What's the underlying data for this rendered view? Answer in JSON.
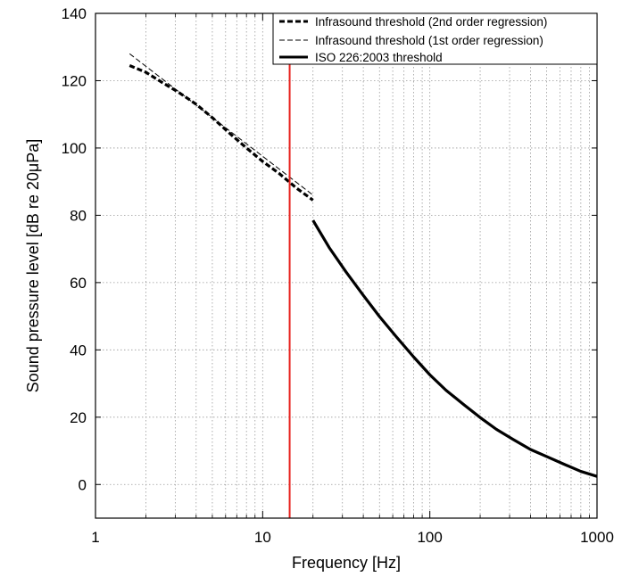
{
  "chart_data": {
    "type": "line",
    "xscale": "log",
    "xlim": [
      1,
      1000
    ],
    "ylim": [
      -10,
      140
    ],
    "xticks": [
      1,
      10,
      100,
      1000
    ],
    "xtick_labels": [
      "1",
      "10",
      "100",
      "1000"
    ],
    "yticks": [
      0,
      20,
      40,
      60,
      80,
      100,
      120,
      140
    ],
    "ytick_labels": [
      "0",
      "20",
      "40",
      "60",
      "80",
      "100",
      "120",
      "140"
    ],
    "xlabel": "Frequency [Hz]",
    "ylabel_parts": [
      "Sound pressure level [dB re 20",
      "μ",
      "Pa]"
    ],
    "grid": true,
    "legend_position": "top-right",
    "colors": {
      "axis": "#000000",
      "grid": "#9a9a9a",
      "marker_line": "#e8231e"
    },
    "series": [
      {
        "name": "Infrasound threshold (2nd order regression)",
        "style": "dashed-thick",
        "color": "#000000",
        "points": [
          [
            1.6,
            124.5
          ],
          [
            2,
            122.5
          ],
          [
            2.5,
            119.5
          ],
          [
            3.15,
            116.5
          ],
          [
            4,
            113
          ],
          [
            5,
            109
          ],
          [
            6.3,
            104.5
          ],
          [
            8,
            100
          ],
          [
            10,
            96
          ],
          [
            12.5,
            92.5
          ],
          [
            16,
            88
          ],
          [
            20,
            84.5
          ]
        ]
      },
      {
        "name": "Infrasound threshold (1st order regression)",
        "style": "dashed-thin",
        "color": "#000000",
        "points": [
          [
            1.6,
            128
          ],
          [
            20,
            86
          ]
        ]
      },
      {
        "name": "ISO 226:2003 threshold",
        "style": "solid-thick",
        "color": "#000000",
        "points": [
          [
            20,
            78.5
          ],
          [
            25,
            70.4
          ],
          [
            31.5,
            63.2
          ],
          [
            40,
            56.2
          ],
          [
            50,
            49.9
          ],
          [
            63,
            43.9
          ],
          [
            80,
            37.9
          ],
          [
            100,
            32.6
          ],
          [
            125,
            28
          ],
          [
            160,
            23.7
          ],
          [
            200,
            19.9
          ],
          [
            250,
            16.4
          ],
          [
            315,
            13.4
          ],
          [
            400,
            10.4
          ],
          [
            500,
            8.3
          ],
          [
            630,
            6.1
          ],
          [
            800,
            3.9
          ],
          [
            1000,
            2.4
          ]
        ]
      }
    ],
    "vertical_line_x": 14.5
  }
}
